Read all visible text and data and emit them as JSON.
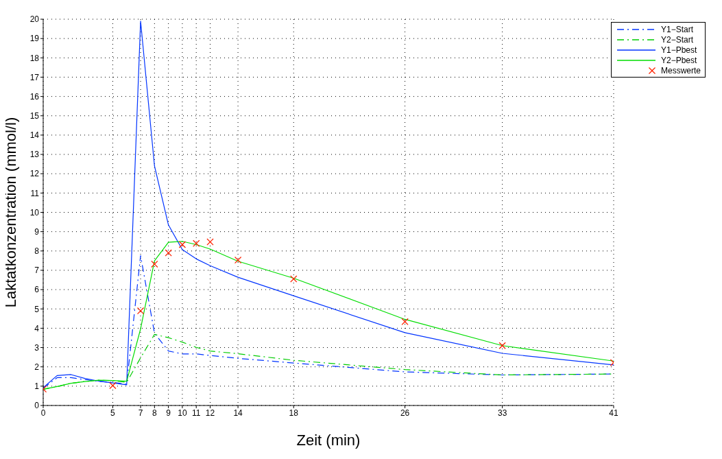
{
  "chart_data": {
    "type": "line",
    "xlabel": "Zeit (min)",
    "ylabel": "Laktatkonzentration  (mmol/l)",
    "xlim": [
      0,
      41
    ],
    "xticks": [
      0,
      5,
      7,
      8,
      9,
      10,
      11,
      12,
      14,
      18,
      26,
      33,
      41
    ],
    "ylim": [
      0,
      20
    ],
    "yticks": [
      0,
      1,
      2,
      3,
      4,
      5,
      6,
      7,
      8,
      9,
      10,
      11,
      12,
      13,
      14,
      15,
      16,
      17,
      18,
      19,
      20
    ],
    "grid": true,
    "legend": "top right",
    "series": [
      {
        "name": "Y1−Start",
        "color": "#0033ff",
        "line_style": "dashdot",
        "x": [
          0,
          1,
          2,
          3,
          4,
          5,
          6,
          7,
          8,
          9,
          10,
          11,
          12,
          14,
          18,
          26,
          33,
          41
        ],
        "values": [
          0.9,
          1.44,
          1.44,
          1.34,
          1.25,
          1.2,
          1.1,
          7.76,
          3.74,
          2.82,
          2.67,
          2.67,
          2.59,
          2.44,
          2.2,
          1.74,
          1.58,
          1.63
        ]
      },
      {
        "name": "Y2−Start",
        "color": "#00cc00",
        "line_style": "dashdot",
        "x": [
          0,
          1,
          2,
          3,
          4,
          5,
          6,
          7,
          8,
          9,
          10,
          11,
          12,
          14,
          18,
          26,
          33,
          41
        ],
        "values": [
          0.84,
          0.98,
          1.15,
          1.24,
          1.31,
          1.29,
          1.2,
          2.47,
          3.68,
          3.51,
          3.28,
          3.01,
          2.82,
          2.68,
          2.34,
          1.86,
          1.58,
          1.63
        ]
      },
      {
        "name": "Y1−Pbest",
        "color": "#0033ff",
        "line_style": "solid",
        "x": [
          0,
          1,
          2,
          3,
          4,
          5,
          6,
          7,
          8,
          9,
          10,
          11,
          12,
          14,
          18,
          26,
          33,
          41
        ],
        "values": [
          0.92,
          1.55,
          1.6,
          1.4,
          1.26,
          1.17,
          1.07,
          19.9,
          12.4,
          9.35,
          8.07,
          7.59,
          7.24,
          6.64,
          5.68,
          3.77,
          2.7,
          2.1
        ]
      },
      {
        "name": "Y2−Pbest",
        "color": "#00dd00",
        "line_style": "solid",
        "x": [
          0,
          1,
          2,
          3,
          4,
          5,
          6,
          7,
          8,
          9,
          10,
          11,
          12,
          14,
          18,
          26,
          33,
          41
        ],
        "values": [
          0.84,
          0.98,
          1.15,
          1.24,
          1.31,
          1.29,
          1.26,
          3.97,
          7.49,
          8.45,
          8.5,
          8.33,
          8.1,
          7.47,
          6.59,
          4.46,
          3.1,
          2.3
        ]
      },
      {
        "name": "Messwerte",
        "type": "scatter",
        "marker": "cross",
        "color": "#ff2200",
        "x": [
          0,
          5,
          7,
          8,
          9,
          10,
          11,
          12,
          14,
          18,
          26,
          33,
          41
        ],
        "values": [
          0.85,
          1.03,
          4.9,
          7.32,
          7.9,
          8.33,
          8.39,
          8.47,
          7.53,
          6.55,
          4.34,
          3.1,
          2.22
        ]
      }
    ]
  }
}
